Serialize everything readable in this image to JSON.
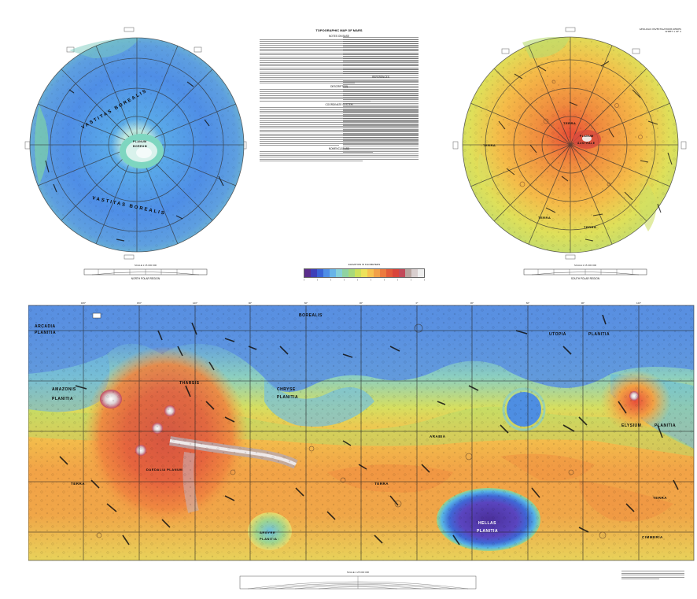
{
  "sheet": {
    "title": "TOPOGRAPHIC MAP OF MARS",
    "subtitle": "GEOLOGIC INVESTIGATIONS SERIES",
    "sheet_label": "SHEET 1 OF 2"
  },
  "center_text": {
    "heading_1": "NOTES ON BASE",
    "heading_2": "DESCRIPTION",
    "heading_3": "COORDINATE SYSTEM",
    "heading_4": "NOMENCLATURE",
    "heading_5": "REFERENCES"
  },
  "north_map": {
    "label_top": "VASTITAS BOREALIS",
    "label_bottom": "VASTITAS BOREALIS",
    "center_label_1": "PLANUM",
    "center_label_2": "BOREUM",
    "caption": "NORTH POLAR REGION"
  },
  "south_map": {
    "center_label_1": "PLANUM",
    "center_label_2": "AUSTRALE",
    "terra_1": "TERRA",
    "terra_2": "TERRA",
    "terra_3": "TERRA",
    "terra_4": "TERRA",
    "caption": "SOUTH POLAR REGION"
  },
  "main_map": {
    "labels": {
      "arcadia": "ARCADIA",
      "arcadia_planitia": "PLANITIA",
      "amazonis": "AMAZONIS",
      "amazonis_planitia": "PLANITIA",
      "tharsis": "THARSIS",
      "borealis": "BOREALIS",
      "chryse": "CHRYSE",
      "chryse_planitia": "PLANITIA",
      "utopia": "UTOPIA",
      "utopia_planitia": "PLANITIA",
      "elysium": "ELYSIUM",
      "elysium_planitia": "PLANITIA",
      "hellas": "HELLAS",
      "hellas_planitia": "PLANITIA",
      "argyre": "ARGYRE",
      "argyre_planitia": "PLANITIA",
      "daedalia": "DAEDALIA PLANUM",
      "terra_w": "TERRA",
      "terra_s": "TERRA",
      "terra_se": "TERRA",
      "arabia": "ARABIA",
      "cimmeria": "CIMMERIA"
    }
  },
  "legend": {
    "title": "ELEVATION IN KILOMETERS",
    "colors": [
      "#5b2d8c",
      "#3d3fb8",
      "#3a63d6",
      "#4f8ee6",
      "#68b4e8",
      "#86d0d8",
      "#8fd3a2",
      "#a7d97a",
      "#cde05b",
      "#eee25a",
      "#f7c24f",
      "#f2a047",
      "#ec7a3f",
      "#e25a3a",
      "#d9453b",
      "#c24a5a",
      "#b9a5a0",
      "#d9cfcf",
      "#eeeeee"
    ],
    "scale_label": "SCALE"
  },
  "colors": {
    "lowland_blue": "#5a90e0",
    "highland_orange": "#f0a24a",
    "volcano_red": "#e25040",
    "hellas_purple": "#6b4fb0"
  }
}
